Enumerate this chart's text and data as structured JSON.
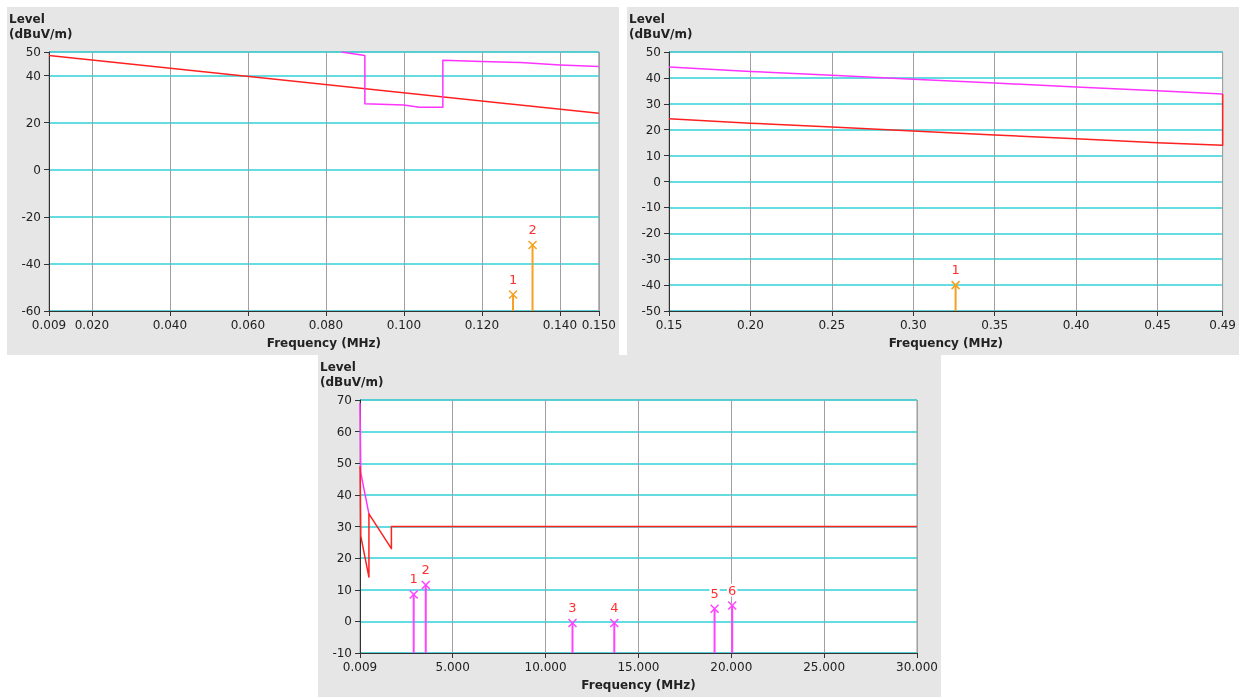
{
  "chart_data": [
    {
      "type": "line",
      "xlabel": "Frequency (MHz)",
      "ylabel": "Level (dBuV/m)",
      "xlim": [
        0.009,
        0.15
      ],
      "ylim": [
        -60,
        50
      ],
      "xticks": [
        0.009,
        {
          "value": 0.02,
          "label": "0.020"
        },
        {
          "value": 0.04,
          "label": "0.040"
        },
        {
          "value": 0.06,
          "label": "0.060"
        },
        {
          "value": 0.08,
          "label": "0.080"
        },
        {
          "value": 0.1,
          "label": "0.100"
        },
        {
          "value": 0.12,
          "label": "0.120"
        },
        {
          "value": 0.14,
          "label": "0.140"
        },
        {
          "value": 0.15,
          "label": "0.150"
        }
      ],
      "yticks": [
        -60,
        -40,
        -20,
        0,
        20,
        40,
        50
      ],
      "grid": true,
      "series": [
        {
          "color": "#ff2020",
          "x": [
            0.009,
            0.15
          ],
          "values": [
            48.5,
            24
          ]
        },
        {
          "color": "#ff33ff",
          "x": [
            0.084,
            0.09,
            0.09,
            0.1,
            0.104,
            0.11,
            0.11,
            0.12,
            0.13,
            0.14,
            0.15
          ],
          "values": [
            50,
            48.5,
            28,
            27.5,
            26.5,
            26.5,
            46.5,
            46,
            45.5,
            44.5,
            43.8
          ]
        },
        {
          "type": "lollipop",
          "marker": "cross",
          "color": "#f5a020",
          "x": [
            0.128,
            0.133
          ],
          "values": [
            -53,
            -32
          ]
        }
      ],
      "annotations": [
        {
          "text": "1",
          "x": 0.128,
          "y": -53
        },
        {
          "text": "2",
          "x": 0.133,
          "y": -32
        }
      ]
    },
    {
      "type": "line",
      "xlabel": "Frequency (MHz)",
      "ylabel": "Level (dBuV/m)",
      "xlim": [
        0.15,
        0.49
      ],
      "ylim": [
        -50,
        50
      ],
      "xticks": [
        0.15,
        {
          "value": 0.2,
          "label": "0.20"
        },
        0.25,
        {
          "value": 0.3,
          "label": "0.30"
        },
        0.35,
        {
          "value": 0.4,
          "label": "0.40"
        },
        0.45,
        0.49
      ],
      "yticks": [
        -50,
        -40,
        -30,
        -20,
        -10,
        0,
        10,
        20,
        30,
        40,
        50
      ],
      "grid": true,
      "series": [
        {
          "color": "#ff33ff",
          "x": [
            0.15,
            0.2,
            0.25,
            0.3,
            0.35,
            0.4,
            0.45,
            0.49
          ],
          "values": [
            44.2,
            42.5,
            41,
            39.5,
            38,
            36.5,
            35,
            33.8
          ]
        },
        {
          "color": "#ff2020",
          "x": [
            0.15,
            0.2,
            0.25,
            0.3,
            0.35,
            0.4,
            0.45,
            0.49,
            0.49
          ],
          "values": [
            24.2,
            22.5,
            21,
            19.5,
            18,
            16.5,
            15,
            14,
            33.8
          ]
        },
        {
          "type": "lollipop",
          "marker": "cross",
          "color": "#f5a020",
          "x": [
            0.326
          ],
          "values": [
            -40
          ]
        }
      ],
      "annotations": [
        {
          "text": "1",
          "x": 0.326,
          "y": -40
        }
      ]
    },
    {
      "type": "line",
      "xlabel": "Frequency (MHz)",
      "ylabel": "Level (dBuV/m)",
      "xlim": [
        0.009,
        30
      ],
      "ylim": [
        -10,
        70
      ],
      "xticks": [
        0.009,
        {
          "value": 5,
          "label": "5.000"
        },
        {
          "value": 10,
          "label": "10.000"
        },
        {
          "value": 15,
          "label": "15.000"
        },
        {
          "value": 20,
          "label": "20.000"
        },
        {
          "value": 25,
          "label": "25.000"
        },
        {
          "value": 30,
          "label": "30.000"
        }
      ],
      "yticks": [
        -10,
        0,
        10,
        20,
        30,
        40,
        50,
        60,
        70
      ],
      "grid": true,
      "series": [
        {
          "color": "#ff33ff",
          "x": [
            0.009,
            0.03,
            0.05,
            0.15,
            0.49
          ],
          "values": [
            69,
            58,
            47,
            44,
            34
          ]
        },
        {
          "color": "#ff2020",
          "x": [
            0.009,
            0.02,
            0.05,
            0.15,
            0.49,
            0.49,
            1.7,
            1.7,
            30
          ],
          "values": [
            49,
            48,
            27,
            24,
            14,
            34,
            23,
            30,
            30
          ]
        },
        {
          "type": "lollipop",
          "marker": "cross",
          "color": "#ff44ff",
          "x": [
            2.9,
            3.55,
            11.45,
            13.7,
            19.1,
            20.05
          ],
          "values": [
            8.5,
            11.5,
            -0.5,
            -0.5,
            4,
            5
          ]
        }
      ],
      "annotations": [
        {
          "text": "1",
          "x": 2.9,
          "y": 8.5
        },
        {
          "text": "2",
          "x": 3.55,
          "y": 11.5
        },
        {
          "text": "3",
          "x": 11.45,
          "y": -0.5
        },
        {
          "text": "4",
          "x": 13.7,
          "y": -0.5
        },
        {
          "text": "5",
          "x": 19.1,
          "y": 4
        },
        {
          "text": "6",
          "x": 20.05,
          "y": 5
        }
      ]
    }
  ]
}
